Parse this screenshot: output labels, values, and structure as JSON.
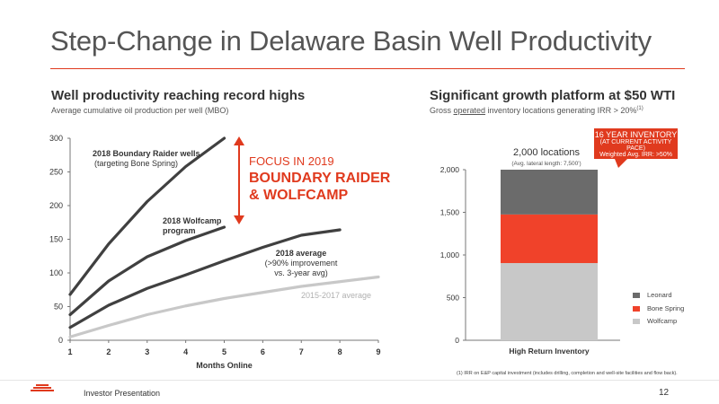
{
  "page": {
    "title": "Step-Change in Delaware Basin Well Productivity",
    "footer": "Investor Presentation",
    "page_number": "12",
    "accent_color": "#e03a1e"
  },
  "left": {
    "heading": "Well productivity reaching record highs",
    "subheading": "Average cumulative oil production per well (MBO)",
    "focus_small": "FOCUS IN 2019",
    "focus_large_1": "BOUNDARY RAIDER",
    "focus_large_2": "& WOLFCAMP",
    "ann_raider_1": "2018 Boundary Raider wells",
    "ann_raider_2": "(targeting Bone Spring)",
    "ann_wolfcamp_1": "2018 Wolfcamp",
    "ann_wolfcamp_2": "program",
    "ann_avg_1": "2018 average",
    "ann_avg_2": "(>90% improvement",
    "ann_avg_3": "vs. 3-year avg)",
    "ann_hist": "2015-2017 average"
  },
  "right": {
    "heading": "Significant growth platform at $50 WTI",
    "sub_pre": "Gross ",
    "sub_underlined": "operated",
    "sub_post": " inventory locations generating IRR > 20%",
    "sub_sup": "(1)",
    "callout_1": "16 YEAR  INVENTORY",
    "callout_2": "(AT CURRENT ACTIVITY PACE)",
    "callout_3": "Weighted Avg. IRR: >50%",
    "locations": "2,000 locations",
    "locations_sub": "(Avg. lateral length: 7,500')",
    "footnote": "(1) IRR on E&P capital investment (includes drilling, completion and well-site facilities and flow back)."
  },
  "chart_data": [
    {
      "type": "line",
      "title": "Well productivity reaching record highs",
      "ylabel": "Average cumulative oil production per well (MBO)",
      "xlabel": "Months Online",
      "xlim": [
        1,
        9
      ],
      "ylim": [
        0,
        300
      ],
      "x_ticks": [
        "1",
        "2",
        "3",
        "4",
        "5",
        "6",
        "7",
        "8",
        "9"
      ],
      "y_ticks": [
        "0",
        "50",
        "100",
        "150",
        "200",
        "250",
        "300"
      ],
      "grid": false,
      "series": [
        {
          "name": "2018 Boundary Raider wells",
          "color": "#404040",
          "x": [
            1,
            2,
            3,
            4,
            5
          ],
          "values": [
            68,
            143,
            206,
            258,
            300
          ]
        },
        {
          "name": "2018 Wolfcamp program",
          "color": "#404040",
          "x": [
            1,
            2,
            3,
            4,
            5
          ],
          "values": [
            38,
            88,
            124,
            148,
            168
          ]
        },
        {
          "name": "2018 average",
          "color": "#404040",
          "x": [
            1,
            2,
            3,
            4,
            5,
            6,
            7,
            8
          ],
          "values": [
            19,
            52,
            77,
            97,
            118,
            138,
            156,
            164
          ]
        },
        {
          "name": "2015-2017 average",
          "color": "#c8c8c8",
          "x": [
            1,
            2,
            3,
            4,
            5,
            6,
            7,
            8,
            9
          ],
          "values": [
            5,
            22,
            38,
            51,
            62,
            71,
            80,
            87,
            94
          ]
        }
      ]
    },
    {
      "type": "bar",
      "stacked": true,
      "title": "Significant growth platform at $50 WTI",
      "categories": [
        "High Return Inventory"
      ],
      "ylim": [
        0,
        2000
      ],
      "y_ticks": [
        "0",
        "500",
        "1,000",
        "1,500",
        "2,000"
      ],
      "legend": "right",
      "series": [
        {
          "name": "Wolfcamp",
          "color": "#c8c8c8",
          "values": [
            905
          ]
        },
        {
          "name": "Bone Spring",
          "color": "#f0422a",
          "values": [
            570
          ]
        },
        {
          "name": "Leonard",
          "color": "#6b6b6b",
          "values": [
            525
          ]
        }
      ]
    }
  ]
}
